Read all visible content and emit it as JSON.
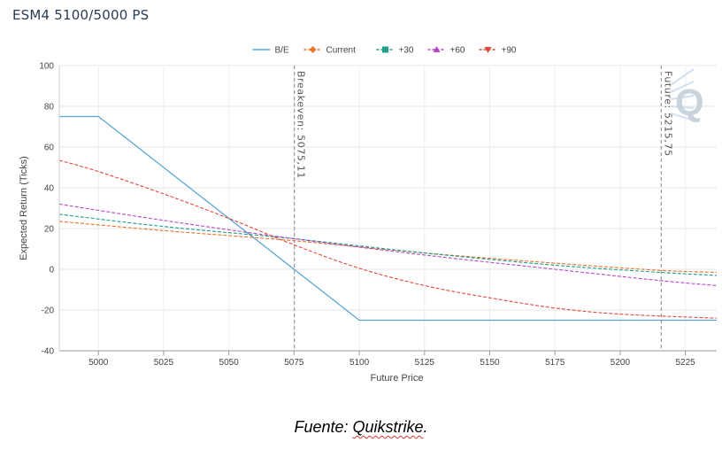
{
  "title": "ESM4 5100/5000 PS",
  "caption": {
    "prefix": "Fuente: ",
    "source": "Quikstrike",
    "suffix": "."
  },
  "watermark_letter": "Q",
  "chart_data": {
    "type": "line",
    "xlabel": "Future Price",
    "ylabel": "Expected Return (Ticks)",
    "xlim": [
      4985,
      5237
    ],
    "ylim": [
      -40,
      100
    ],
    "x_ticks": [
      5000,
      5025,
      5050,
      5075,
      5100,
      5125,
      5150,
      5175,
      5200,
      5225
    ],
    "y_ticks": [
      -40,
      -20,
      0,
      20,
      40,
      60,
      80,
      100
    ],
    "grid": true,
    "legend_position": "top-center",
    "reference_lines": [
      {
        "x": 5075.11,
        "label": "Breakeven: 5075,11"
      },
      {
        "x": 5215.75,
        "label": "Future: 5215,75"
      }
    ],
    "series": [
      {
        "name": "B/E",
        "color": "#5aa5d4",
        "dash": false,
        "marker": "line",
        "x": [
          4985,
          5000,
          5100,
          5237
        ],
        "y": [
          75,
          75,
          -25,
          -25
        ]
      },
      {
        "name": "Current",
        "color": "#e8722a",
        "dash": true,
        "marker": "diamond",
        "x": [
          4985,
          5025,
          5075,
          5125,
          5175,
          5215,
          5237
        ],
        "y": [
          23.5,
          19,
          14,
          8,
          3,
          -0.5,
          -1.5
        ]
      },
      {
        "name": "+30",
        "color": "#1aa08a",
        "dash": true,
        "marker": "square",
        "x": [
          4985,
          5025,
          5075,
          5125,
          5175,
          5215,
          5237
        ],
        "y": [
          27,
          21,
          15,
          8,
          2,
          -1.5,
          -3
        ]
      },
      {
        "name": "+60",
        "color": "#b548c6",
        "dash": true,
        "marker": "triangle",
        "x": [
          4985,
          5025,
          5075,
          5125,
          5175,
          5215,
          5237
        ],
        "y": [
          32,
          24,
          15,
          7,
          0,
          -5.5,
          -8
        ]
      },
      {
        "name": "+90",
        "color": "#e04a3c",
        "dash": true,
        "marker": "triangle-down",
        "x": [
          4985,
          5000,
          5025,
          5050,
          5075,
          5100,
          5125,
          5150,
          5175,
          5200,
          5237
        ],
        "y": [
          53.5,
          48,
          37,
          25,
          12,
          0.5,
          -8,
          -14,
          -19,
          -22,
          -24
        ]
      }
    ]
  }
}
